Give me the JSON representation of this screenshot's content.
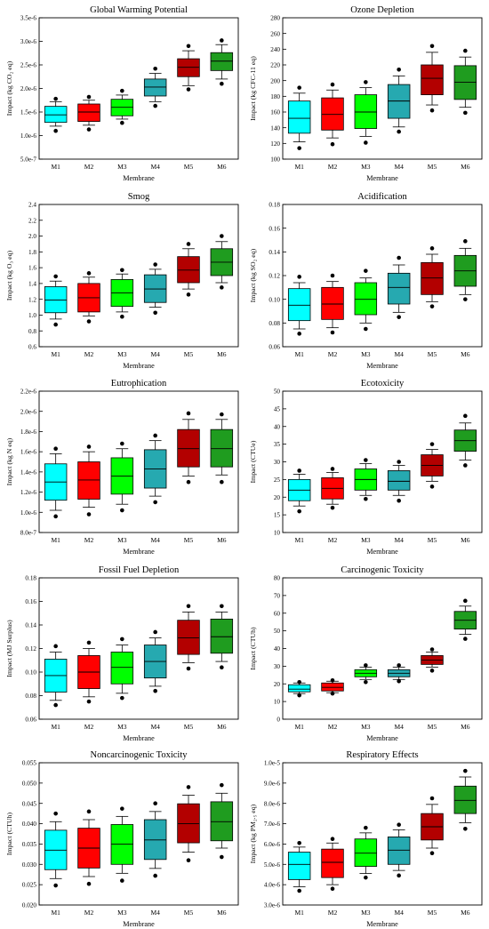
{
  "figure": {
    "categories": [
      "M1",
      "M2",
      "M3",
      "M4",
      "M5",
      "M6"
    ],
    "xlabel": "Membrane",
    "colors": {
      "M1": "#00ffff",
      "M2": "#ff0000",
      "M3": "#00ff00",
      "M4": "#26a9b0",
      "M5": "#b30000",
      "M6": "#1f9c1f"
    }
  },
  "chart_data": [
    {
      "type": "boxplot",
      "title": "Global Warming Potential",
      "ylabel": "Impact (kg CO₂ eq)",
      "ylim": [
        5e-07,
        3.5e-06
      ],
      "yticks": [
        5e-07,
        1e-06,
        1.5e-06,
        2e-06,
        2.5e-06,
        3e-06,
        3.5e-06
      ],
      "ytick_labels": [
        "5.0e-7",
        "1.0e-6",
        "1.5e-6",
        "2.0e-6",
        "2.5e-6",
        "3.0e-6",
        "3.5e-6"
      ],
      "boxes": [
        {
          "category": "M1",
          "whislo": 1.2e-06,
          "q1": 1.28e-06,
          "med": 1.44e-06,
          "q3": 1.62e-06,
          "whishi": 1.72e-06,
          "fliers": [
            1.1e-06,
            1.78e-06
          ]
        },
        {
          "category": "M2",
          "whislo": 1.22e-06,
          "q1": 1.3e-06,
          "med": 1.5e-06,
          "q3": 1.67e-06,
          "whishi": 1.75e-06,
          "fliers": [
            1.13e-06,
            1.82e-06
          ]
        },
        {
          "category": "M3",
          "whislo": 1.35e-06,
          "q1": 1.42e-06,
          "med": 1.6e-06,
          "q3": 1.77e-06,
          "whishi": 1.86e-06,
          "fliers": [
            1.27e-06,
            1.95e-06
          ]
        },
        {
          "category": "M4",
          "whislo": 1.72e-06,
          "q1": 1.84e-06,
          "med": 2.03e-06,
          "q3": 2.2e-06,
          "whishi": 2.32e-06,
          "fliers": [
            1.63e-06,
            2.42e-06
          ]
        },
        {
          "category": "M5",
          "whislo": 2.06e-06,
          "q1": 2.25e-06,
          "med": 2.45e-06,
          "q3": 2.63e-06,
          "whishi": 2.8e-06,
          "fliers": [
            1.98e-06,
            2.9e-06
          ]
        },
        {
          "category": "M6",
          "whislo": 2.2e-06,
          "q1": 2.38e-06,
          "med": 2.58e-06,
          "q3": 2.76e-06,
          "whishi": 2.93e-06,
          "fliers": [
            2.1e-06,
            3.02e-06
          ]
        }
      ]
    },
    {
      "type": "boxplot",
      "title": "Ozone Depletion",
      "ylabel": "Impact (kg CFC-11 eq)",
      "ylim": [
        100,
        280
      ],
      "yticks": [
        100,
        120,
        140,
        160,
        180,
        200,
        220,
        240,
        260,
        280
      ],
      "ytick_labels": [
        "100",
        "120",
        "140",
        "160",
        "180",
        "200",
        "220",
        "240",
        "260",
        "280"
      ],
      "boxes": [
        {
          "category": "M1",
          "whislo": 122,
          "q1": 133,
          "med": 152,
          "q3": 174,
          "whishi": 184,
          "fliers": [
            114,
            191
          ]
        },
        {
          "category": "M2",
          "whislo": 127,
          "q1": 137,
          "med": 157,
          "q3": 178,
          "whishi": 188,
          "fliers": [
            119,
            195
          ]
        },
        {
          "category": "M3",
          "whislo": 129,
          "q1": 139,
          "med": 160,
          "q3": 182,
          "whishi": 191,
          "fliers": [
            121,
            198
          ]
        },
        {
          "category": "M4",
          "whislo": 141,
          "q1": 152,
          "med": 174,
          "q3": 195,
          "whishi": 206,
          "fliers": [
            135,
            214
          ]
        },
        {
          "category": "M5",
          "whislo": 169,
          "q1": 182,
          "med": 203,
          "q3": 220,
          "whishi": 236,
          "fliers": [
            162,
            244
          ]
        },
        {
          "category": "M6",
          "whislo": 166,
          "q1": 176,
          "med": 198,
          "q3": 219,
          "whishi": 230,
          "fliers": [
            159,
            238
          ]
        }
      ]
    },
    {
      "type": "boxplot",
      "title": "Smog",
      "ylabel": "Impact (kg O₃ eq)",
      "ylim": [
        0.6,
        2.4
      ],
      "yticks": [
        0.6,
        0.8,
        1.0,
        1.2,
        1.4,
        1.6,
        1.8,
        2.0,
        2.2,
        2.4
      ],
      "ytick_labels": [
        "0.6",
        "0.8",
        "1.0",
        "1.2",
        "1.4",
        "1.6",
        "1.8",
        "2.0",
        "2.2",
        "2.4"
      ],
      "boxes": [
        {
          "category": "M1",
          "whislo": 0.95,
          "q1": 1.03,
          "med": 1.19,
          "q3": 1.36,
          "whishi": 1.43,
          "fliers": [
            0.88,
            1.49
          ]
        },
        {
          "category": "M2",
          "whislo": 0.99,
          "q1": 1.04,
          "med": 1.22,
          "q3": 1.4,
          "whishi": 1.48,
          "fliers": [
            0.92,
            1.53
          ]
        },
        {
          "category": "M3",
          "whislo": 1.04,
          "q1": 1.11,
          "med": 1.28,
          "q3": 1.45,
          "whishi": 1.52,
          "fliers": [
            0.98,
            1.57
          ]
        },
        {
          "category": "M4",
          "whislo": 1.1,
          "q1": 1.16,
          "med": 1.33,
          "q3": 1.51,
          "whishi": 1.58,
          "fliers": [
            1.03,
            1.64
          ]
        },
        {
          "category": "M5",
          "whislo": 1.33,
          "q1": 1.41,
          "med": 1.57,
          "q3": 1.74,
          "whishi": 1.84,
          "fliers": [
            1.26,
            1.9
          ]
        },
        {
          "category": "M6",
          "whislo": 1.41,
          "q1": 1.5,
          "med": 1.67,
          "q3": 1.84,
          "whishi": 1.93,
          "fliers": [
            1.35,
            2.0
          ]
        }
      ]
    },
    {
      "type": "boxplot",
      "title": "Acidification",
      "ylabel": "Impact (kg SO₂ eq)",
      "ylim": [
        0.06,
        0.18
      ],
      "yticks": [
        0.06,
        0.08,
        0.1,
        0.12,
        0.14,
        0.16,
        0.18
      ],
      "ytick_labels": [
        "0.06",
        "0.08",
        "0.10",
        "0.12",
        "0.14",
        "0.16",
        "0.18"
      ],
      "boxes": [
        {
          "category": "M1",
          "whislo": 0.075,
          "q1": 0.082,
          "med": 0.095,
          "q3": 0.109,
          "whishi": 0.114,
          "fliers": [
            0.071,
            0.119
          ]
        },
        {
          "category": "M2",
          "whislo": 0.076,
          "q1": 0.083,
          "med": 0.096,
          "q3": 0.11,
          "whishi": 0.115,
          "fliers": [
            0.072,
            0.12
          ]
        },
        {
          "category": "M3",
          "whislo": 0.08,
          "q1": 0.087,
          "med": 0.1,
          "q3": 0.114,
          "whishi": 0.118,
          "fliers": [
            0.075,
            0.124
          ]
        },
        {
          "category": "M4",
          "whislo": 0.089,
          "q1": 0.096,
          "med": 0.11,
          "q3": 0.122,
          "whishi": 0.129,
          "fliers": [
            0.085,
            0.135
          ]
        },
        {
          "category": "M5",
          "whislo": 0.098,
          "q1": 0.104,
          "med": 0.118,
          "q3": 0.131,
          "whishi": 0.138,
          "fliers": [
            0.094,
            0.143
          ]
        },
        {
          "category": "M6",
          "whislo": 0.104,
          "q1": 0.111,
          "med": 0.124,
          "q3": 0.137,
          "whishi": 0.143,
          "fliers": [
            0.1,
            0.149
          ]
        }
      ]
    },
    {
      "type": "boxplot",
      "title": "Eutrophication",
      "ylabel": "Impact (kg N eq)",
      "ylim": [
        8e-07,
        2.2e-06
      ],
      "yticks": [
        8e-07,
        1e-06,
        1.2e-06,
        1.4e-06,
        1.6e-06,
        1.8e-06,
        2e-06,
        2.2e-06
      ],
      "ytick_labels": [
        "8.0e-7",
        "1.0e-6",
        "1.2e-6",
        "1.4e-6",
        "1.6e-6",
        "1.8e-6",
        "2.0e-6",
        "2.2e-6"
      ],
      "boxes": [
        {
          "category": "M1",
          "whislo": 1.02e-06,
          "q1": 1.12e-06,
          "med": 1.3e-06,
          "q3": 1.48e-06,
          "whishi": 1.58e-06,
          "fliers": [
            9.6e-07,
            1.63e-06
          ]
        },
        {
          "category": "M2",
          "whislo": 1.05e-06,
          "q1": 1.13e-06,
          "med": 1.32e-06,
          "q3": 1.5e-06,
          "whishi": 1.6e-06,
          "fliers": [
            9.8e-07,
            1.65e-06
          ]
        },
        {
          "category": "M3",
          "whislo": 1.08e-06,
          "q1": 1.18e-06,
          "med": 1.36e-06,
          "q3": 1.54e-06,
          "whishi": 1.63e-06,
          "fliers": [
            1.02e-06,
            1.68e-06
          ]
        },
        {
          "category": "M4",
          "whislo": 1.16e-06,
          "q1": 1.24e-06,
          "med": 1.43e-06,
          "q3": 1.62e-06,
          "whishi": 1.71e-06,
          "fliers": [
            1.1e-06,
            1.76e-06
          ]
        },
        {
          "category": "M5",
          "whislo": 1.36e-06,
          "q1": 1.45e-06,
          "med": 1.63e-06,
          "q3": 1.82e-06,
          "whishi": 1.92e-06,
          "fliers": [
            1.3e-06,
            1.98e-06
          ]
        },
        {
          "category": "M6",
          "whislo": 1.37e-06,
          "q1": 1.45e-06,
          "med": 1.63e-06,
          "q3": 1.82e-06,
          "whishi": 1.92e-06,
          "fliers": [
            1.3e-06,
            1.97e-06
          ]
        }
      ]
    },
    {
      "type": "boxplot",
      "title": "Ecotoxicity",
      "ylabel": "Impact (CTUe)",
      "ylim": [
        10,
        50
      ],
      "yticks": [
        10,
        15,
        20,
        25,
        30,
        35,
        40,
        45,
        50
      ],
      "ytick_labels": [
        "10",
        "15",
        "20",
        "25",
        "30",
        "35",
        "40",
        "45",
        "50"
      ],
      "boxes": [
        {
          "category": "M1",
          "whislo": 17.5,
          "q1": 19,
          "med": 22,
          "q3": 25,
          "whishi": 26.5,
          "fliers": [
            16,
            27.5
          ]
        },
        {
          "category": "M2",
          "whislo": 18,
          "q1": 19.5,
          "med": 22.5,
          "q3": 25.5,
          "whishi": 27,
          "fliers": [
            17,
            28
          ]
        },
        {
          "category": "M3",
          "whislo": 20.5,
          "q1": 22,
          "med": 25,
          "q3": 28,
          "whishi": 29.5,
          "fliers": [
            19.5,
            30.5
          ]
        },
        {
          "category": "M4",
          "whislo": 20.5,
          "q1": 22,
          "med": 24.5,
          "q3": 27.5,
          "whishi": 29,
          "fliers": [
            19,
            30
          ]
        },
        {
          "category": "M5",
          "whislo": 24.5,
          "q1": 26,
          "med": 29,
          "q3": 32,
          "whishi": 33.5,
          "fliers": [
            23,
            35
          ]
        },
        {
          "category": "M6",
          "whislo": 30.5,
          "q1": 33,
          "med": 36,
          "q3": 39,
          "whishi": 41,
          "fliers": [
            29,
            43
          ]
        }
      ]
    },
    {
      "type": "boxplot",
      "title": "Fossil Fuel Depletion",
      "ylabel": "Impact (MJ Surplus)",
      "ylim": [
        0.06,
        0.18
      ],
      "yticks": [
        0.06,
        0.08,
        0.1,
        0.12,
        0.14,
        0.16,
        0.18
      ],
      "ytick_labels": [
        "0.06",
        "0.08",
        "0.10",
        "0.12",
        "0.14",
        "0.16",
        "0.18"
      ],
      "boxes": [
        {
          "category": "M1",
          "whislo": 0.076,
          "q1": 0.083,
          "med": 0.097,
          "q3": 0.111,
          "whishi": 0.117,
          "fliers": [
            0.072,
            0.122
          ]
        },
        {
          "category": "M2",
          "whislo": 0.079,
          "q1": 0.086,
          "med": 0.1,
          "q3": 0.114,
          "whishi": 0.12,
          "fliers": [
            0.075,
            0.125
          ]
        },
        {
          "category": "M3",
          "whislo": 0.082,
          "q1": 0.09,
          "med": 0.104,
          "q3": 0.117,
          "whishi": 0.123,
          "fliers": [
            0.078,
            0.128
          ]
        },
        {
          "category": "M4",
          "whislo": 0.088,
          "q1": 0.095,
          "med": 0.109,
          "q3": 0.123,
          "whishi": 0.129,
          "fliers": [
            0.084,
            0.134
          ]
        },
        {
          "category": "M5",
          "whislo": 0.108,
          "q1": 0.115,
          "med": 0.129,
          "q3": 0.144,
          "whishi": 0.151,
          "fliers": [
            0.103,
            0.156
          ]
        },
        {
          "category": "M6",
          "whislo": 0.109,
          "q1": 0.116,
          "med": 0.13,
          "q3": 0.145,
          "whishi": 0.151,
          "fliers": [
            0.104,
            0.156
          ]
        }
      ]
    },
    {
      "type": "boxplot",
      "title": "Carcinogenic Toxicity",
      "ylabel": "Impact (CTUh)",
      "ylim": [
        0,
        80
      ],
      "yticks": [
        0,
        10,
        20,
        30,
        40,
        50,
        60,
        70,
        80
      ],
      "ytick_labels": [
        "0",
        "10",
        "20",
        "30",
        "40",
        "50",
        "60",
        "70",
        "80"
      ],
      "boxes": [
        {
          "category": "M1",
          "whislo": 14.5,
          "q1": 15.5,
          "med": 17,
          "q3": 19.5,
          "whishi": 20.5,
          "fliers": [
            13.5,
            21
          ]
        },
        {
          "category": "M2",
          "whislo": 15,
          "q1": 16,
          "med": 18,
          "q3": 20.5,
          "whishi": 21.5,
          "fliers": [
            14.5,
            22
          ]
        },
        {
          "category": "M3",
          "whislo": 22.5,
          "q1": 24,
          "med": 26,
          "q3": 28,
          "whishi": 29.5,
          "fliers": [
            21,
            30.5
          ]
        },
        {
          "category": "M4",
          "whislo": 22.5,
          "q1": 24,
          "med": 26,
          "q3": 28,
          "whishi": 29.5,
          "fliers": [
            21.5,
            30.5
          ]
        },
        {
          "category": "M5",
          "whislo": 29.5,
          "q1": 31,
          "med": 33.5,
          "q3": 36,
          "whishi": 38,
          "fliers": [
            27.5,
            39.5
          ]
        },
        {
          "category": "M6",
          "whislo": 48,
          "q1": 51,
          "med": 56,
          "q3": 61,
          "whishi": 64,
          "fliers": [
            45.5,
            67
          ]
        }
      ]
    },
    {
      "type": "boxplot",
      "title": "Noncarcinogenic Toxicity",
      "ylabel": "Impact (CTUh)",
      "ylim": [
        0.02,
        0.055
      ],
      "yticks": [
        0.02,
        0.025,
        0.03,
        0.035,
        0.04,
        0.045,
        0.05,
        0.055
      ],
      "ytick_labels": [
        "0.020",
        "0.025",
        "0.030",
        "0.035",
        "0.040",
        "0.045",
        "0.050",
        "0.055"
      ],
      "boxes": [
        {
          "category": "M1",
          "whislo": 0.0265,
          "q1": 0.0287,
          "med": 0.0335,
          "q3": 0.0384,
          "whishi": 0.0405,
          "fliers": [
            0.0248,
            0.0425
          ]
        },
        {
          "category": "M2",
          "whislo": 0.027,
          "q1": 0.0291,
          "med": 0.034,
          "q3": 0.0389,
          "whishi": 0.041,
          "fliers": [
            0.0252,
            0.043
          ]
        },
        {
          "category": "M3",
          "whislo": 0.0278,
          "q1": 0.03,
          "med": 0.035,
          "q3": 0.0398,
          "whishi": 0.0418,
          "fliers": [
            0.026,
            0.0437
          ]
        },
        {
          "category": "M4",
          "whislo": 0.029,
          "q1": 0.0312,
          "med": 0.036,
          "q3": 0.041,
          "whishi": 0.043,
          "fliers": [
            0.0272,
            0.045
          ]
        },
        {
          "category": "M5",
          "whislo": 0.033,
          "q1": 0.0353,
          "med": 0.04,
          "q3": 0.0449,
          "whishi": 0.047,
          "fliers": [
            0.031,
            0.049
          ]
        },
        {
          "category": "M6",
          "whislo": 0.034,
          "q1": 0.0358,
          "med": 0.0405,
          "q3": 0.0454,
          "whishi": 0.0475,
          "fliers": [
            0.0318,
            0.0495
          ]
        }
      ]
    },
    {
      "type": "boxplot",
      "title": "Respiratory Effects",
      "ylabel": "Impact (kg PM₂.₅ eq)",
      "ylim": [
        3e-06,
        1e-05
      ],
      "yticks": [
        3e-06,
        4e-06,
        5e-06,
        6e-06,
        7e-06,
        8e-06,
        9e-06,
        1e-05
      ],
      "ytick_labels": [
        "3.0e-6",
        "4.0e-6",
        "5.0e-6",
        "6.0e-6",
        "7.0e-6",
        "8.0e-6",
        "9.0e-6",
        "1.0e-5"
      ],
      "boxes": [
        {
          "category": "M1",
          "whislo": 3.9e-06,
          "q1": 4.25e-06,
          "med": 5e-06,
          "q3": 5.6e-06,
          "whishi": 5.85e-06,
          "fliers": [
            3.7e-06,
            6.05e-06
          ]
        },
        {
          "category": "M2",
          "whislo": 4e-06,
          "q1": 4.35e-06,
          "med": 5.1e-06,
          "q3": 5.75e-06,
          "whishi": 6.05e-06,
          "fliers": [
            3.8e-06,
            6.25e-06
          ]
        },
        {
          "category": "M3",
          "whislo": 4.55e-06,
          "q1": 4.9e-06,
          "med": 5.55e-06,
          "q3": 6.25e-06,
          "whishi": 6.55e-06,
          "fliers": [
            4.35e-06,
            6.8e-06
          ]
        },
        {
          "category": "M4",
          "whislo": 4.7e-06,
          "q1": 5e-06,
          "med": 5.7e-06,
          "q3": 6.35e-06,
          "whishi": 6.7e-06,
          "fliers": [
            4.45e-06,
            6.95e-06
          ]
        },
        {
          "category": "M5",
          "whislo": 5.8e-06,
          "q1": 6.2e-06,
          "med": 6.85e-06,
          "q3": 7.5e-06,
          "whishi": 7.95e-06,
          "fliers": [
            5.55e-06,
            8.25e-06
          ]
        },
        {
          "category": "M6",
          "whislo": 7.05e-06,
          "q1": 7.5e-06,
          "med": 8.15e-06,
          "q3": 8.85e-06,
          "whishi": 9.3e-06,
          "fliers": [
            6.75e-06,
            9.6e-06
          ]
        }
      ]
    }
  ]
}
